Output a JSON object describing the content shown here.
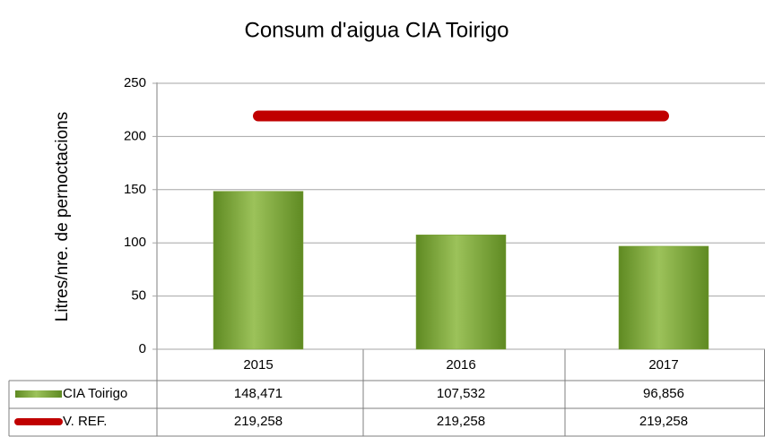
{
  "chart_data": {
    "type": "bar",
    "title": "Consum d'aigua CIA Toirigo",
    "y_label": "Litres/nre. de pernoctacions",
    "categories": [
      "2015",
      "2016",
      "2017"
    ],
    "series": [
      {
        "name": "CIA Toirigo",
        "type": "bar",
        "color": "#7ea33a",
        "values": [
          148.471,
          107.532,
          96.856
        ],
        "value_labels": [
          "148,471",
          "107,532",
          "96,856"
        ]
      },
      {
        "name": "V. REF.",
        "type": "line",
        "color": "#c00000",
        "values": [
          219.258,
          219.258,
          219.258
        ],
        "value_labels": [
          "219,258",
          "219,258",
          "219,258"
        ]
      }
    ],
    "ylim": [
      0,
      250
    ],
    "yticks": [
      0,
      50,
      100,
      150,
      200,
      250
    ],
    "grid": true
  }
}
